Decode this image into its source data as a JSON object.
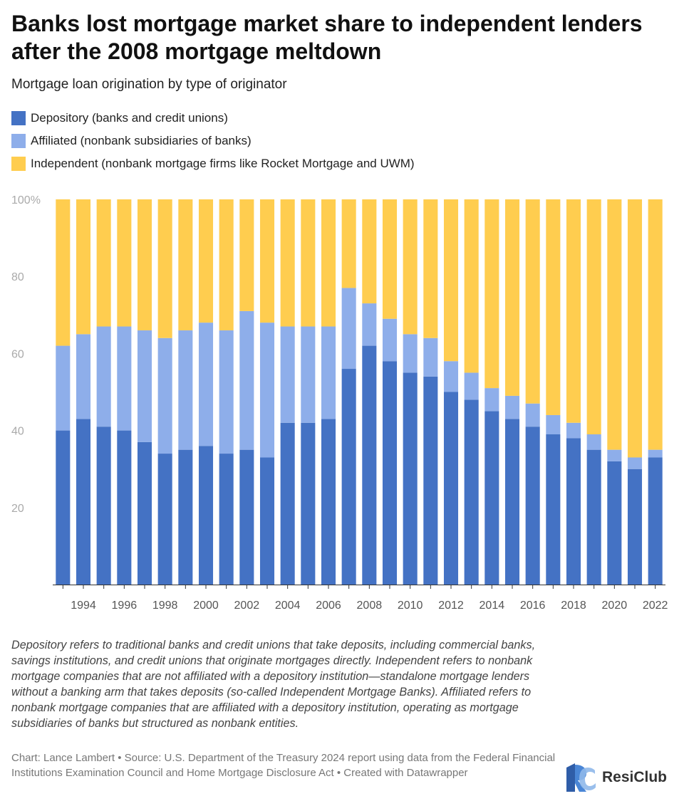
{
  "title": "Banks lost mortgage market share to independent lenders after the 2008 mortgage meltdown",
  "subtitle": "Mortgage loan origination by type of originator",
  "colors": {
    "depository": "#4472c4",
    "affiliated": "#8eaeea",
    "independent": "#ffcd4f"
  },
  "legend": [
    {
      "label": "Depository (banks and credit unions)",
      "color": "#4472c4"
    },
    {
      "label": "Affiliated (nonbank subsidiaries of banks)",
      "color": "#8eaeea"
    },
    {
      "label": "Independent (nonbank mortgage firms like Rocket Mortgage and UWM)",
      "color": "#ffcd4f"
    }
  ],
  "chart_data": {
    "type": "bar",
    "stacked": true,
    "title": "Banks lost mortgage market share to independent lenders after the 2008 mortgage meltdown",
    "subtitle": "Mortgage loan origination by type of originator",
    "categories": [
      "1993",
      "1994",
      "1995",
      "1996",
      "1997",
      "1998",
      "1999",
      "2000",
      "2001",
      "2002",
      "2003",
      "2004",
      "2005",
      "2006",
      "2007",
      "2008",
      "2009",
      "2010",
      "2011",
      "2012",
      "2013",
      "2014",
      "2015",
      "2016",
      "2017",
      "2018",
      "2019",
      "2020",
      "2021",
      "2022"
    ],
    "x_tick_labels": [
      "1994",
      "1996",
      "1998",
      "2000",
      "2002",
      "2004",
      "2006",
      "2008",
      "2010",
      "2012",
      "2014",
      "2016",
      "2018",
      "2020",
      "2022"
    ],
    "series": [
      {
        "name": "Depository (banks and credit unions)",
        "values": [
          40,
          43,
          41,
          40,
          37,
          34,
          35,
          36,
          34,
          35,
          33,
          42,
          42,
          43,
          56,
          62,
          58,
          55,
          54,
          50,
          48,
          45,
          43,
          41,
          39,
          38,
          35,
          32,
          30,
          33
        ]
      },
      {
        "name": "Affiliated (nonbank subsidiaries of banks)",
        "values": [
          22,
          22,
          26,
          27,
          29,
          30,
          31,
          32,
          32,
          36,
          35,
          25,
          25,
          24,
          21,
          11,
          11,
          10,
          10,
          8,
          7,
          6,
          6,
          6,
          5,
          4,
          4,
          3,
          3,
          2
        ]
      },
      {
        "name": "Independent (nonbank mortgage firms like Rocket Mortgage and UWM)",
        "values": [
          38,
          35,
          33,
          33,
          34,
          36,
          34,
          32,
          34,
          29,
          32,
          33,
          33,
          33,
          23,
          27,
          31,
          35,
          36,
          42,
          45,
          49,
          51,
          53,
          56,
          58,
          61,
          65,
          67,
          65
        ]
      }
    ],
    "y_ticks": [
      20,
      40,
      60,
      80,
      100
    ],
    "y_tick_labels": [
      "20",
      "40",
      "60",
      "80",
      "100%"
    ],
    "ylim": [
      0,
      100
    ],
    "xlabel": "",
    "ylabel": "",
    "grid": false,
    "legend_position": "top-left"
  },
  "note": "Depository refers to traditional banks and credit unions that take deposits, including commercial banks, savings institutions, and credit unions that originate mortgages directly. Independent refers to nonbank mortgage companies that are not affiliated with a depository institution—standalone mortgage lenders without a banking arm that takes deposits (so-called Independent Mortgage Banks). Affiliated refers to nonbank mortgage companies that are affiliated with a depository institution, operating as mortgage subsidiaries of banks but structured as nonbank entities.",
  "credits": "Chart: Lance Lambert • Source: U.S. Department of the Treasury 2024 report using data from the Federal Financial Institutions Examination Council and Home Mortgage Disclosure Act • Created with Datawrapper",
  "brand": {
    "name": "ResiClub",
    "icon": "resiclub-logo-icon"
  }
}
